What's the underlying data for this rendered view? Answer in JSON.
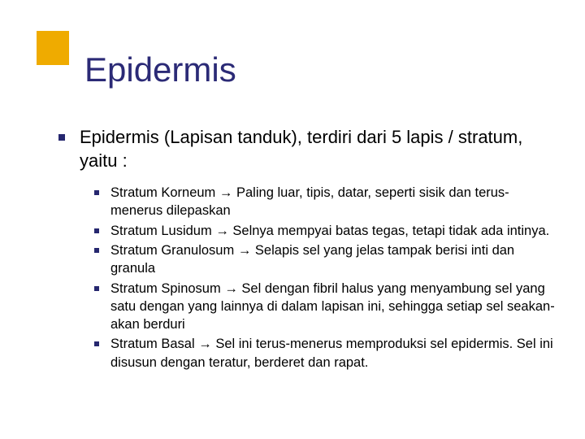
{
  "colors": {
    "front_square": "#efab00",
    "bullet": "#26276f",
    "title_text": "#2b2a76",
    "body_text": "#000000",
    "background": "#ffffff"
  },
  "title": "Epidermis",
  "intro": "Epidermis (Lapisan tanduk), terdiri dari 5 lapis / stratum, yaitu :",
  "arrow": "→",
  "items": [
    {
      "name": "Stratum Korneum",
      "desc": "Paling luar, tipis, datar, seperti sisik dan terus-menerus dilepaskan"
    },
    {
      "name": "Stratum Lusidum",
      "desc": "Selnya mempyai batas tegas, tetapi tidak ada intinya."
    },
    {
      "name": "Stratum Granulosum",
      "desc": "Selapis sel yang jelas tampak berisi inti dan granula"
    },
    {
      "name": "Stratum Spinosum",
      "desc": "Sel dengan fibril halus yang menyambung sel yang satu dengan yang lainnya di dalam lapisan ini, sehingga setiap sel seakan-akan berduri"
    },
    {
      "name": "Stratum Basal",
      "desc": "Sel ini terus-menerus memproduksi sel epidermis. Sel ini disusun dengan teratur, berderet dan rapat."
    }
  ]
}
